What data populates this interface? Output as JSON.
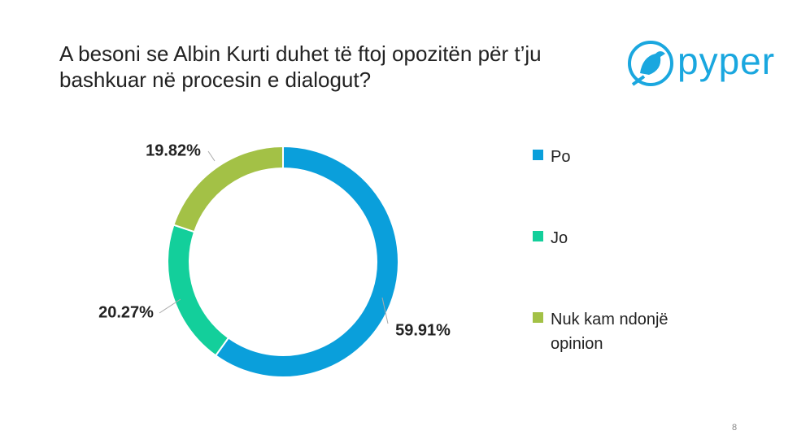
{
  "header": {
    "title": "A besoni se Albin Kurti duhet të ftoj opozitën për t’ju bashkuar në procesin e dialogut?",
    "logo": "pyper"
  },
  "chart_data": {
    "type": "donut",
    "categories": [
      "Po",
      "Jo",
      "Nuk kam ndonjë opinion"
    ],
    "values": [
      59.91,
      20.27,
      19.82
    ],
    "value_labels": [
      "59.91%",
      "20.27%",
      "19.82%"
    ],
    "colors": [
      "#0a9fdb",
      "#13cf9b",
      "#a3c146"
    ],
    "legend": "right"
  },
  "footer": {
    "page_number": "8"
  }
}
